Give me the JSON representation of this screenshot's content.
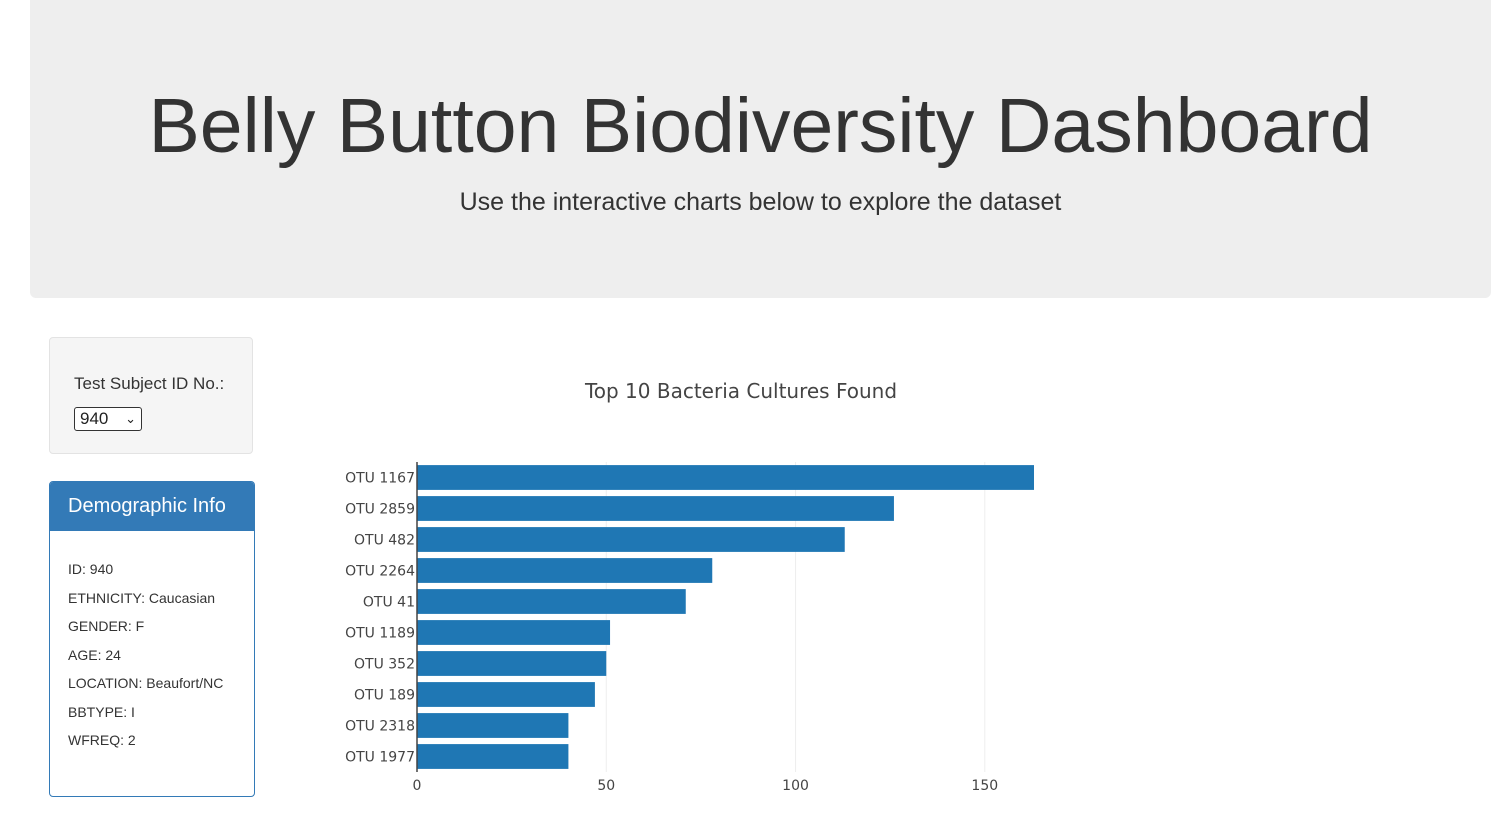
{
  "header": {
    "title": "Belly Button Biodiversity Dashboard",
    "subtitle": "Use the interactive charts below to explore the dataset"
  },
  "selector": {
    "label": "Test Subject ID No.:",
    "selected": "940"
  },
  "demographics": {
    "heading": "Demographic Info",
    "lines": [
      "ID: 940",
      "ETHNICITY: Caucasian",
      "GENDER: F",
      "AGE: 24",
      "LOCATION: Beaufort/NC",
      "BBTYPE: I",
      "WFREQ: 2"
    ]
  },
  "colors": {
    "bar": "#1f77b4",
    "panel": "#337ab7",
    "jumbotron": "#eeeeee"
  },
  "chart_data": {
    "type": "bar",
    "orientation": "horizontal",
    "title": "Top 10 Bacteria Cultures Found",
    "categories": [
      "OTU 1167",
      "OTU 2859",
      "OTU 482",
      "OTU 2264",
      "OTU 41",
      "OTU 1189",
      "OTU 352",
      "OTU 189",
      "OTU 2318",
      "OTU 1977"
    ],
    "values": [
      163,
      126,
      113,
      78,
      71,
      51,
      50,
      47,
      40,
      40
    ],
    "xlim": [
      0,
      163
    ],
    "xticks": [
      0,
      50,
      100,
      150
    ],
    "grid": true
  }
}
